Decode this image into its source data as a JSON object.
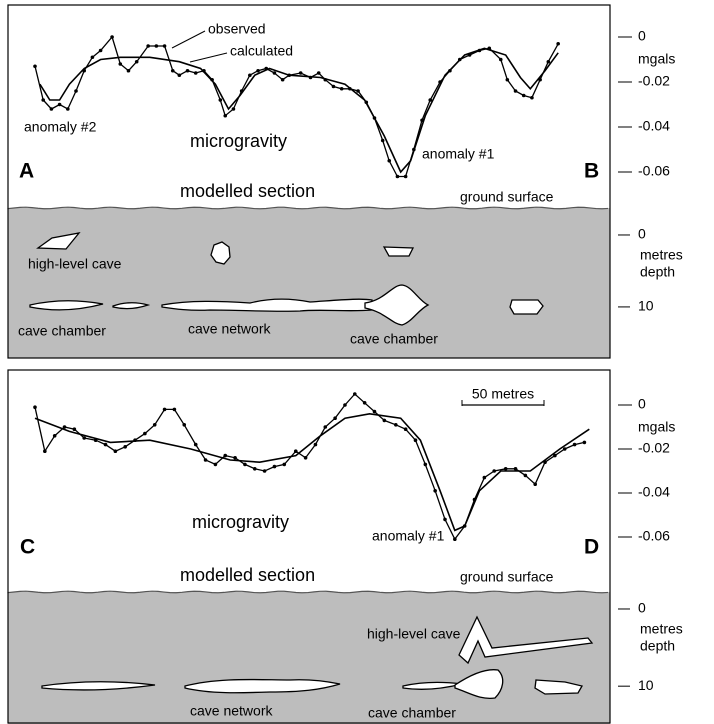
{
  "chart_data": [
    {
      "type": "line",
      "title": "microgravity",
      "y_label": "mgals",
      "panel_labels": [
        "A",
        "B"
      ],
      "annotations": [
        "anomaly #2",
        "anomaly #1"
      ],
      "xlim": [
        0,
        340
      ],
      "ylim": [
        -0.07,
        0.01
      ],
      "yticks": [
        0,
        -0.02,
        -0.04,
        -0.06
      ],
      "series": [
        {
          "name": "observed",
          "color": "#000000",
          "markers": true,
          "x": [
            0,
            5,
            10,
            15,
            20,
            25,
            30,
            35,
            40,
            47,
            52,
            57,
            62,
            69,
            74,
            79,
            84,
            88,
            93,
            98,
            103,
            108,
            113,
            116,
            121,
            126,
            131,
            136,
            141,
            146,
            151,
            155,
            162,
            168,
            173,
            177,
            182,
            187,
            192,
            197,
            202,
            207,
            212,
            216,
            221,
            226,
            231,
            236,
            241,
            247,
            253,
            259,
            265,
            271,
            277,
            284,
            288,
            293,
            298,
            303,
            308,
            313,
            319
          ],
          "values": [
            -0.013,
            -0.028,
            -0.032,
            -0.03,
            -0.032,
            -0.024,
            -0.015,
            -0.009,
            -0.006,
            0.0,
            -0.012,
            -0.015,
            -0.011,
            -0.004,
            -0.004,
            -0.004,
            -0.015,
            -0.017,
            -0.015,
            -0.016,
            -0.015,
            -0.019,
            -0.028,
            -0.035,
            -0.032,
            -0.024,
            -0.017,
            -0.015,
            -0.014,
            -0.016,
            -0.019,
            -0.017,
            -0.016,
            -0.018,
            -0.016,
            -0.019,
            -0.022,
            -0.023,
            -0.023,
            -0.024,
            -0.029,
            -0.036,
            -0.046,
            -0.055,
            -0.062,
            -0.062,
            -0.05,
            -0.037,
            -0.028,
            -0.02,
            -0.015,
            -0.01,
            -0.008,
            -0.006,
            -0.005,
            -0.01,
            -0.019,
            -0.024,
            -0.026,
            -0.027,
            -0.019,
            -0.011,
            -0.003
          ]
        },
        {
          "name": "calculated",
          "color": "#000000",
          "markers": false,
          "x": [
            3,
            9,
            15,
            21,
            30,
            40,
            52,
            70,
            88,
            101,
            110,
            118,
            125,
            134,
            143,
            155,
            174,
            189,
            201,
            213,
            223,
            229,
            238,
            250,
            262,
            274,
            287,
            296,
            302,
            311,
            319
          ],
          "values": [
            -0.021,
            -0.028,
            -0.028,
            -0.021,
            -0.014,
            -0.01,
            -0.009,
            -0.009,
            -0.011,
            -0.014,
            -0.021,
            -0.032,
            -0.026,
            -0.017,
            -0.014,
            -0.017,
            -0.018,
            -0.021,
            -0.028,
            -0.044,
            -0.06,
            -0.055,
            -0.035,
            -0.017,
            -0.008,
            -0.005,
            -0.008,
            -0.018,
            -0.023,
            -0.015,
            -0.007
          ]
        }
      ],
      "section": {
        "title": "modelled section",
        "ground_label": "ground surface",
        "depth_label": [
          "metres",
          "depth"
        ],
        "depth_lim": [
          -3.75,
          17.1
        ],
        "depth_ticks": [
          0,
          10
        ],
        "color": "#bdbdbd",
        "labels": [
          "high-level cave",
          "cave chamber",
          "cave network",
          "cave chamber"
        ]
      }
    },
    {
      "type": "line",
      "title": "microgravity",
      "y_label": "mgals",
      "panel_labels": [
        "C",
        "D"
      ],
      "annotations": [
        "anomaly #1"
      ],
      "xlim": [
        0,
        340
      ],
      "ylim": [
        -0.07,
        0.01
      ],
      "yticks": [
        0,
        -0.02,
        -0.04,
        -0.06
      ],
      "scale_bar": {
        "label": "50 metres",
        "length": 50
      },
      "series": [
        {
          "color": "#000000",
          "markers": true,
          "x": [
            0,
            6,
            12,
            18,
            24,
            30,
            37,
            43,
            49,
            55,
            61,
            67,
            73,
            79,
            85,
            91,
            98,
            104,
            110,
            116,
            122,
            128,
            134,
            140,
            146,
            152,
            159,
            165,
            171,
            177,
            183,
            189,
            195,
            201,
            207,
            213,
            220,
            226,
            232,
            238,
            244,
            250,
            256,
            262,
            268,
            274,
            280,
            287,
            293,
            299,
            305,
            311,
            317,
            323,
            329,
            335
          ],
          "values": [
            -0.001,
            -0.021,
            -0.014,
            -0.01,
            -0.011,
            -0.015,
            -0.016,
            -0.018,
            -0.021,
            -0.019,
            -0.016,
            -0.013,
            -0.009,
            -0.002,
            -0.002,
            -0.009,
            -0.018,
            -0.025,
            -0.027,
            -0.023,
            -0.024,
            -0.027,
            -0.029,
            -0.03,
            -0.028,
            -0.027,
            -0.021,
            -0.024,
            -0.018,
            -0.01,
            -0.006,
            0.0,
            0.005,
            0.001,
            -0.003,
            -0.007,
            -0.009,
            -0.011,
            -0.016,
            -0.027,
            -0.039,
            -0.052,
            -0.061,
            -0.055,
            -0.043,
            -0.033,
            -0.03,
            -0.029,
            -0.029,
            -0.032,
            -0.036,
            -0.026,
            -0.023,
            -0.02,
            -0.018,
            -0.017
          ]
        },
        {
          "color": "#000000",
          "markers": false,
          "x": [
            0,
            21,
            46,
            70,
            95,
            119,
            137,
            159,
            174,
            189,
            204,
            223,
            235,
            247,
            256,
            262,
            271,
            284,
            302,
            320,
            338
          ],
          "values": [
            -0.006,
            -0.012,
            -0.017,
            -0.016,
            -0.02,
            -0.025,
            -0.026,
            -0.023,
            -0.014,
            -0.006,
            -0.004,
            -0.006,
            -0.016,
            -0.039,
            -0.057,
            -0.055,
            -0.039,
            -0.03,
            -0.03,
            -0.02,
            -0.011
          ]
        }
      ],
      "section": {
        "title": "modelled section",
        "ground_label": "ground surface",
        "depth_label": [
          "metres",
          "depth"
        ],
        "depth_lim": [
          -2.2,
          14.9
        ],
        "depth_ticks": [
          0,
          10
        ],
        "color": "#bdbdbd",
        "labels": [
          "high-level cave",
          "cave network",
          "cave chamber"
        ]
      }
    }
  ]
}
